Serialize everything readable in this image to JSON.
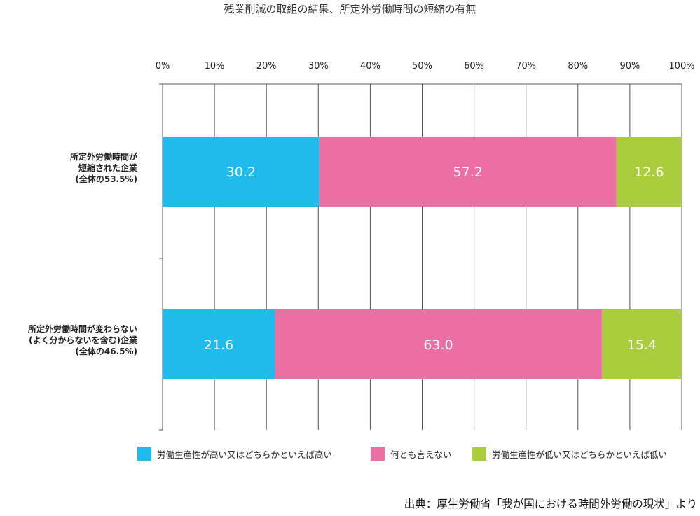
{
  "chart_data": {
    "type": "bar",
    "orientation": "horizontal-stacked-percent",
    "title": "残業削減の取組の結果、所定外労働時間の短縮の有無",
    "x_ticks": [
      "0%",
      "10%",
      "20%",
      "30%",
      "40%",
      "50%",
      "60%",
      "70%",
      "80%",
      "90%",
      "100%"
    ],
    "xlim": [
      0,
      100
    ],
    "grid": true,
    "legend_position": "bottom",
    "categories": [
      [
        "所定外労働時間が",
        "短縮された企業",
        "(全体の53.5%)"
      ],
      [
        "所定外労働時間が変わらない",
        "(よく分からないを含む)企業",
        "(全体の46.5%)"
      ]
    ],
    "series": [
      {
        "name": "労働生産性が高い又はどちらかといえば高い",
        "color": "#1fbbed",
        "values": [
          30.2,
          21.6
        ],
        "labels": [
          "30.2",
          "21.6"
        ]
      },
      {
        "name": "何とも言えない",
        "color": "#ec6fa4",
        "values": [
          57.2,
          63.0
        ],
        "labels": [
          "57.2",
          "63.0"
        ]
      },
      {
        "name": "労働生産性が低い又はどちらかといえば低い",
        "color": "#a9cd3c",
        "values": [
          12.6,
          15.4
        ],
        "labels": [
          "12.6",
          "15.4"
        ]
      }
    ]
  },
  "source": "出典：厚生労働省「我が国における時間外労働の現状」より"
}
